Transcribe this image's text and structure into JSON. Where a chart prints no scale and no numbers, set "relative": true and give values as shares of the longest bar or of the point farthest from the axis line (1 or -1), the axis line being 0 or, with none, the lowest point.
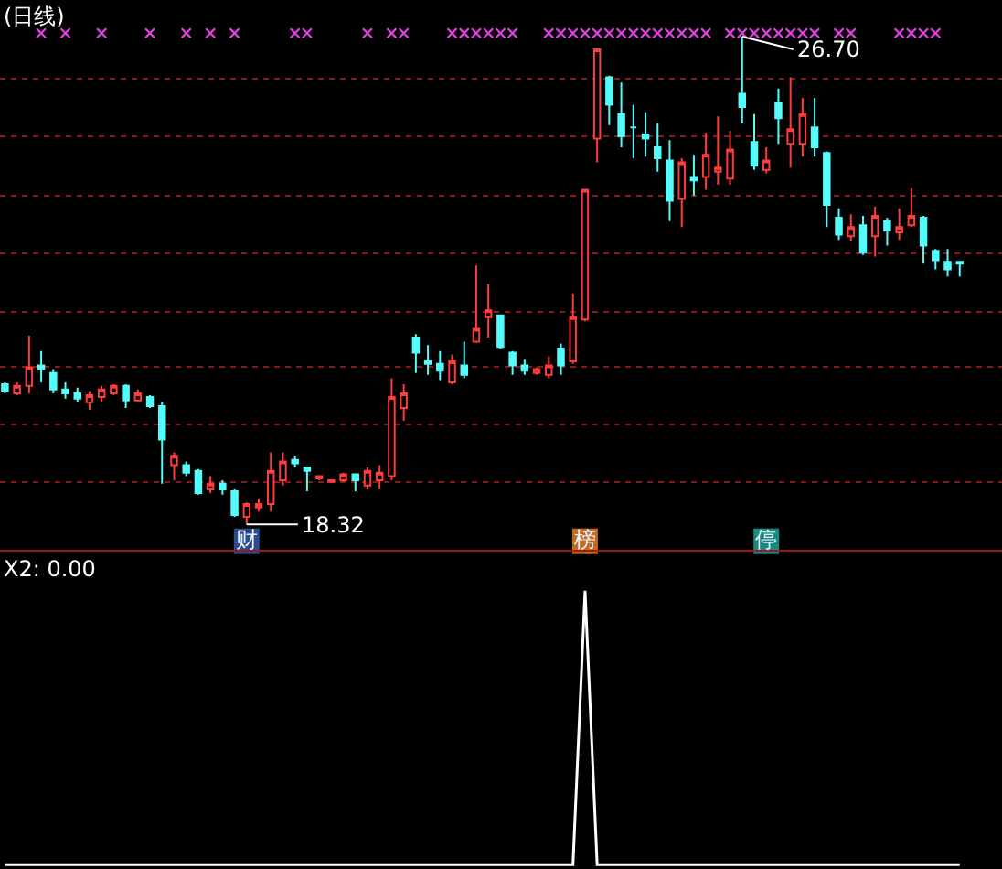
{
  "chart_data": [
    {
      "type": "candlestick",
      "title": "(日线)",
      "categories": [
        null,
        null,
        null,
        null,
        null,
        null,
        null,
        null,
        null,
        null,
        null,
        null,
        null,
        null,
        null,
        null,
        null,
        null,
        null,
        null,
        null,
        null,
        null,
        null,
        null,
        null,
        null,
        null,
        null,
        null,
        null,
        null,
        null,
        null,
        null,
        null,
        null,
        null,
        null,
        null,
        null,
        null,
        null,
        null,
        null,
        null,
        null,
        null,
        null,
        null,
        null,
        null,
        null,
        null,
        null,
        null,
        null,
        null,
        null,
        null,
        null,
        null,
        null,
        null,
        null,
        null,
        null,
        null,
        null,
        null,
        null,
        null,
        null,
        null,
        null,
        null,
        null,
        null,
        null,
        null
      ],
      "ohlc": [
        [
          20.73,
          20.76,
          20.57,
          20.61
        ],
        [
          20.57,
          20.76,
          20.54,
          20.7
        ],
        [
          20.7,
          21.56,
          20.57,
          21.02
        ],
        [
          21.05,
          21.3,
          20.76,
          20.99
        ],
        [
          20.92,
          20.99,
          20.57,
          20.64
        ],
        [
          20.64,
          20.76,
          20.48,
          20.57
        ],
        [
          20.57,
          20.67,
          20.42,
          20.48
        ],
        [
          20.42,
          20.61,
          20.29,
          20.54
        ],
        [
          20.51,
          20.7,
          20.42,
          20.64
        ],
        [
          20.57,
          20.73,
          20.54,
          20.7
        ],
        [
          20.7,
          20.73,
          20.32,
          20.45
        ],
        [
          20.45,
          20.64,
          20.42,
          20.57
        ],
        [
          20.51,
          20.54,
          20.32,
          20.35
        ],
        [
          20.35,
          20.42,
          19.02,
          19.78
        ],
        [
          19.34,
          19.56,
          19.08,
          19.5
        ],
        [
          19.34,
          19.4,
          19.15,
          19.21
        ],
        [
          19.24,
          19.27,
          18.83,
          18.86
        ],
        [
          18.92,
          19.15,
          18.86,
          19.02
        ],
        [
          19.02,
          19.08,
          18.83,
          18.92
        ],
        [
          18.89,
          18.92,
          18.45,
          18.48
        ],
        [
          18.45,
          18.7,
          18.32,
          18.67
        ],
        [
          18.61,
          18.77,
          18.54,
          18.67
        ],
        [
          18.67,
          19.56,
          18.54,
          19.24
        ],
        [
          19.08,
          19.56,
          18.99,
          19.4
        ],
        [
          19.43,
          19.5,
          19.3,
          19.37
        ],
        [
          19.3,
          19.3,
          18.89,
          19.24
        ],
        [
          19.11,
          19.15,
          19.08,
          19.15
        ],
        [
          19.05,
          19.08,
          19.05,
          19.08
        ],
        [
          19.08,
          19.21,
          19.05,
          19.18
        ],
        [
          19.18,
          19.18,
          18.89,
          19.08
        ],
        [
          18.99,
          19.3,
          18.92,
          19.24
        ],
        [
          19.08,
          19.34,
          18.92,
          19.21
        ],
        [
          19.15,
          20.83,
          19.08,
          20.51
        ],
        [
          20.32,
          20.73,
          20.1,
          20.57
        ],
        [
          21.53,
          21.59,
          20.92,
          21.27
        ],
        [
          21.12,
          21.4,
          20.89,
          21.08
        ],
        [
          21.08,
          21.3,
          20.8,
          20.96
        ],
        [
          20.76,
          21.24,
          20.73,
          21.12
        ],
        [
          21.05,
          21.46,
          20.83,
          20.89
        ],
        [
          21.46,
          22.77,
          21.46,
          21.68
        ],
        [
          21.88,
          22.45,
          21.53,
          22.0
        ],
        [
          21.91,
          21.91,
          21.34,
          21.37
        ],
        [
          21.27,
          21.3,
          20.89,
          21.05
        ],
        [
          21.05,
          21.15,
          20.89,
          20.96
        ],
        [
          20.92,
          21.02,
          20.89,
          20.99
        ],
        [
          20.89,
          21.21,
          20.83,
          21.05
        ],
        [
          21.34,
          21.43,
          20.89,
          21.05
        ],
        [
          21.12,
          22.29,
          21.08,
          21.88
        ],
        [
          21.84,
          24.07,
          21.81,
          24.07
        ],
        [
          24.95,
          26.48,
          24.54,
          26.48
        ],
        [
          26.0,
          26.03,
          25.18,
          25.53
        ],
        [
          25.37,
          25.91,
          24.8,
          24.99
        ],
        [
          25.14,
          25.53,
          24.61,
          25.14
        ],
        [
          25.02,
          25.4,
          24.64,
          24.95
        ],
        [
          24.8,
          25.21,
          24.38,
          24.61
        ],
        [
          24.57,
          24.92,
          23.53,
          23.88
        ],
        [
          23.91,
          24.61,
          23.43,
          24.54
        ],
        [
          24.29,
          24.67,
          23.97,
          24.23
        ],
        [
          24.29,
          25.05,
          24.07,
          24.67
        ],
        [
          24.38,
          25.33,
          24.16,
          24.45
        ],
        [
          24.26,
          25.08,
          24.16,
          24.76
        ],
        [
          25.72,
          26.7,
          25.21,
          25.49
        ],
        [
          24.89,
          25.37,
          24.41,
          24.48
        ],
        [
          24.41,
          24.8,
          24.35,
          24.57
        ],
        [
          25.56,
          25.81,
          24.86,
          25.3
        ],
        [
          24.86,
          26.0,
          24.45,
          25.11
        ],
        [
          24.86,
          25.65,
          24.64,
          25.37
        ],
        [
          25.14,
          25.65,
          24.64,
          24.8
        ],
        [
          24.7,
          24.73,
          23.43,
          23.81
        ],
        [
          23.59,
          23.75,
          23.21,
          23.3
        ],
        [
          23.27,
          23.65,
          23.18,
          23.43
        ],
        [
          23.46,
          23.62,
          22.95,
          22.99
        ],
        [
          23.27,
          23.78,
          22.92,
          23.62
        ],
        [
          23.53,
          23.59,
          23.11,
          23.37
        ],
        [
          23.34,
          23.75,
          23.21,
          23.43
        ],
        [
          23.46,
          24.1,
          23.43,
          23.62
        ],
        [
          23.59,
          23.62,
          22.8,
          23.11
        ],
        [
          23.02,
          23.05,
          22.7,
          22.86
        ],
        [
          22.83,
          23.05,
          22.58,
          22.7
        ],
        [
          22.83,
          22.83,
          22.58,
          22.8
        ]
      ],
      "colors": [
        "#54fcfc",
        "#ff3c3c",
        "#ff3c3c",
        "#54fcfc",
        "#54fcfc",
        "#54fcfc",
        "#54fcfc",
        "#ff3c3c",
        "#ff3c3c",
        "#ff3c3c",
        "#54fcfc",
        "#ff3c3c",
        "#54fcfc",
        "#54fcfc",
        "#ff3c3c",
        "#54fcfc",
        "#54fcfc",
        "#ff3c3c",
        "#54fcfc",
        "#54fcfc",
        "#ff3c3c",
        "#ff3c3c",
        "#ff3c3c",
        "#ff3c3c",
        "#54fcfc",
        "#54fcfc",
        "#ff3c3c",
        "#ff3c3c",
        "#ff3c3c",
        "#54fcfc",
        "#ff3c3c",
        "#ff3c3c",
        "#ff3c3c",
        "#ff3c3c",
        "#54fcfc",
        "#54fcfc",
        "#54fcfc",
        "#ff3c3c",
        "#54fcfc",
        "#ff3c3c",
        "#ff3c3c",
        "#54fcfc",
        "#54fcfc",
        "#54fcfc",
        "#ff3c3c",
        "#ff3c3c",
        "#54fcfc",
        "#ff3c3c",
        "#ff3c3c",
        "#ff3c3c",
        "#54fcfc",
        "#54fcfc",
        "#54fcfc",
        "#54fcfc",
        "#54fcfc",
        "#54fcfc",
        "#ff3c3c",
        "#54fcfc",
        "#ff3c3c",
        "#ff3c3c",
        "#ff3c3c",
        "#54fcfc",
        "#54fcfc",
        "#ff3c3c",
        "#54fcfc",
        "#ff3c3c",
        "#ff3c3c",
        "#54fcfc",
        "#54fcfc",
        "#54fcfc",
        "#ff3c3c",
        "#54fcfc",
        "#ff3c3c",
        "#54fcfc",
        "#ff3c3c",
        "#ff3c3c",
        "#54fcfc",
        "#54fcfc",
        "#54fcfc",
        "#54fcfc"
      ],
      "series": [
        {
          "type": "scatter",
          "color": "#e040e0",
          "marker": "cross",
          "values": [
            null,
            null,
            null,
            26.76,
            null,
            26.76,
            null,
            null,
            26.76,
            null,
            null,
            null,
            26.76,
            null,
            null,
            26.76,
            null,
            26.76,
            null,
            26.76,
            null,
            null,
            null,
            null,
            26.76,
            26.76,
            null,
            null,
            null,
            null,
            26.76,
            null,
            26.76,
            26.76,
            null,
            null,
            null,
            26.76,
            26.76,
            26.76,
            26.76,
            26.76,
            26.76,
            null,
            null,
            26.76,
            26.76,
            26.76,
            26.76,
            26.76,
            26.76,
            26.76,
            26.76,
            26.76,
            26.76,
            26.76,
            26.76,
            26.76,
            26.76,
            null,
            26.76,
            26.76,
            26.76,
            26.76,
            26.76,
            26.76,
            26.76,
            26.76,
            null,
            26.76,
            26.76,
            null,
            null,
            null,
            26.76,
            26.76,
            26.76,
            26.76,
            null,
            null
          ]
        },
        {
          "type": "scatter",
          "marker": "square",
          "colors": [
            null,
            null,
            null,
            null,
            null,
            null,
            null,
            null,
            null,
            null,
            null,
            null,
            null,
            null,
            null,
            null,
            null,
            null,
            null,
            null,
            "#2a4c8c",
            null,
            null,
            null,
            null,
            null,
            null,
            null,
            null,
            null,
            null,
            null,
            null,
            null,
            null,
            null,
            null,
            null,
            null,
            null,
            null,
            null,
            null,
            null,
            null,
            null,
            null,
            null,
            "#c06a20",
            null,
            null,
            null,
            null,
            null,
            null,
            null,
            null,
            null,
            null,
            null,
            null,
            null,
            null,
            "#1a8a80",
            null,
            null,
            null,
            null,
            null,
            null,
            null,
            null,
            null,
            null,
            null,
            null,
            null,
            null,
            null,
            null
          ],
          "values": [
            null,
            null,
            null,
            null,
            null,
            null,
            null,
            null,
            null,
            null,
            null,
            null,
            null,
            null,
            null,
            null,
            null,
            null,
            null,
            null,
            18.03,
            null,
            null,
            null,
            null,
            null,
            null,
            null,
            null,
            null,
            null,
            null,
            null,
            null,
            null,
            null,
            null,
            null,
            null,
            null,
            null,
            null,
            null,
            null,
            null,
            null,
            null,
            null,
            18.03,
            null,
            null,
            null,
            null,
            null,
            null,
            null,
            null,
            null,
            null,
            null,
            null,
            null,
            null,
            18.03,
            null,
            null,
            null,
            null,
            null,
            null,
            null,
            null,
            null,
            null,
            null,
            null,
            null,
            null,
            null,
            null
          ],
          "value_labels": [
            null,
            null,
            null,
            null,
            null,
            null,
            null,
            null,
            null,
            null,
            null,
            null,
            null,
            null,
            null,
            null,
            null,
            null,
            null,
            null,
            "财",
            null,
            null,
            null,
            null,
            null,
            null,
            null,
            null,
            null,
            null,
            null,
            null,
            null,
            null,
            null,
            null,
            null,
            null,
            null,
            null,
            null,
            null,
            null,
            null,
            null,
            null,
            null,
            "榜",
            null,
            null,
            null,
            null,
            null,
            null,
            null,
            null,
            null,
            null,
            null,
            null,
            null,
            null,
            "停",
            null,
            null,
            null,
            null,
            null,
            null,
            null,
            null,
            null,
            null,
            null,
            null,
            null,
            null,
            null,
            null
          ]
        }
      ],
      "annotations": [
        {
          "text": "26.70",
          "y": 26.7
        },
        "18.32"
      ],
      "ylim": [
        17.9,
        27.33
      ],
      "yticks": [
        {
          "value": 19.04,
          "label": null
        },
        {
          "value": 20.03,
          "label": null
        },
        {
          "value": 21.02,
          "label": null
        },
        {
          "value": 21.97,
          "label": null
        },
        {
          "value": 22.98,
          "label": null
        },
        {
          "value": 23.97,
          "label": null
        },
        {
          "value": 24.99,
          "label": null
        },
        {
          "value": 25.98,
          "label": null
        }
      ],
      "grid": "y"
    },
    {
      "type": "line",
      "title": "X2: 0.00",
      "categories": [
        null,
        null,
        null,
        null,
        null,
        null,
        null,
        null,
        null,
        null,
        null,
        null,
        null,
        null,
        null,
        null,
        null,
        null,
        null,
        null,
        null,
        null,
        null,
        null,
        null,
        null,
        null,
        null,
        null,
        null,
        null,
        null,
        null,
        null,
        null,
        null,
        null,
        null,
        null,
        null,
        null,
        null,
        null,
        null,
        null,
        null,
        null,
        null,
        null,
        null,
        null,
        null,
        null,
        null,
        null,
        null,
        null,
        null,
        null,
        null,
        null,
        null,
        null,
        null,
        null,
        null,
        null,
        null,
        null,
        null,
        null,
        null,
        null,
        null,
        null,
        null,
        null,
        null,
        null,
        null
      ],
      "relative": true,
      "series": [
        {
          "color": "#ffffff",
          "values": [
            0,
            0,
            0,
            0,
            0,
            0,
            0,
            0,
            0,
            0,
            0,
            0,
            0,
            0,
            0,
            0,
            0,
            0,
            0,
            0,
            0,
            0,
            0,
            0,
            0,
            0,
            0,
            0,
            0,
            0,
            0,
            0,
            0,
            0,
            0,
            0,
            0,
            0,
            0,
            0,
            0,
            0,
            0,
            0,
            0,
            0,
            0,
            0,
            1,
            0,
            0,
            0,
            0,
            0,
            0,
            0,
            0,
            0,
            0,
            0,
            0,
            0,
            0,
            0,
            0,
            0,
            0,
            0,
            0,
            0,
            0,
            0,
            0,
            0,
            0,
            0,
            0,
            0,
            0,
            0
          ]
        }
      ]
    }
  ]
}
